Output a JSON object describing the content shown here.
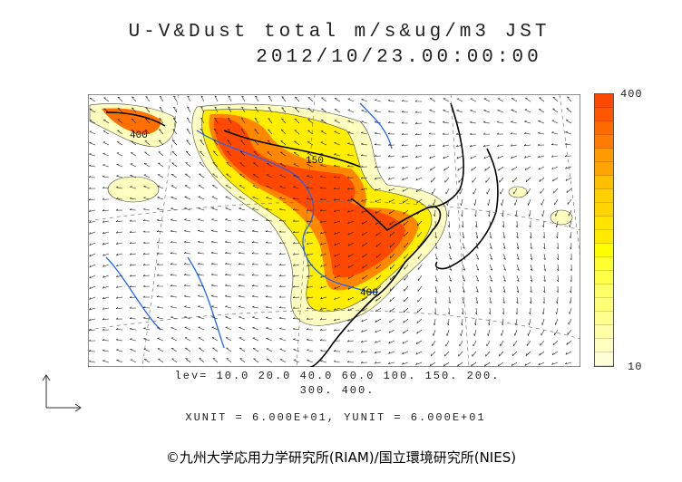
{
  "title": "U-V&Dust total m/s&ug/m3 JST",
  "datetime": "2012/10/23.00:00:00",
  "colorbar": {
    "max_label": "400",
    "min_label": "10",
    "colors": [
      "#ff4800",
      "#ff5600",
      "#ff6a00",
      "#ff7c00",
      "#ff9a00",
      "#ffa400",
      "#ffc000",
      "#ffd000",
      "#ffd400",
      "#ffe400",
      "#ffea00",
      "#ffff00",
      "#ffff30",
      "#ffff48",
      "#ffff68",
      "#ffff78",
      "#ffff90",
      "#ffffa8",
      "#ffffc0",
      "#ffffd8"
    ]
  },
  "contour_labels": [
    "400",
    "150",
    "400"
  ],
  "levels_line1": "lev= 10.0 20.0 40.0 60.0 100. 150. 200.",
  "levels_line2": "300. 400.",
  "units": "XUNIT = 6.000E+01, YUNIT = 6.000E+01",
  "copyright": "©九州大学応用力学研究所(RIAM)/国立環境研究所(NIES)"
}
